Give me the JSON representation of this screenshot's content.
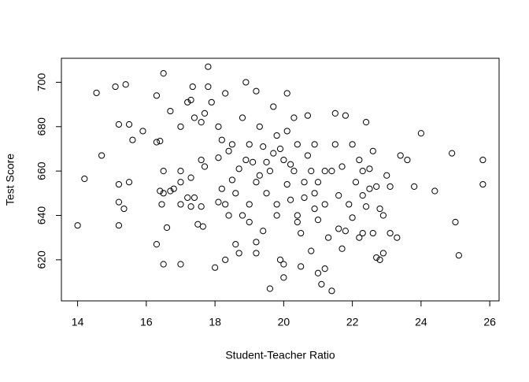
{
  "chart_data": {
    "type": "scatter",
    "x_label": "Student-Teacher Ratio",
    "y_label": "Test Score",
    "color": "#000000",
    "xlim": [
      13.528,
      26.272
    ],
    "ylim": [
      601.5,
      710.8
    ],
    "xticks": [
      14,
      16,
      18,
      20,
      22,
      24,
      26
    ],
    "yticks": [
      620,
      640,
      660,
      680,
      700
    ],
    "x": [
      14.0,
      14.2,
      14.55,
      14.7,
      15.1,
      15.4,
      15.2,
      15.5,
      15.2,
      15.2,
      15.35,
      15.5,
      15.6,
      15.2,
      15.9,
      16.3,
      16.3,
      16.4,
      16.5,
      16.3,
      16.4,
      16.5,
      16.5,
      16.45,
      16.5,
      16.7,
      16.6,
      16.8,
      16.7,
      17.0,
      17.0,
      17.0,
      17.0,
      17.0,
      17.2,
      17.3,
      17.35,
      17.4,
      17.3,
      17.4,
      17.3,
      17.2,
      17.6,
      17.7,
      17.8,
      17.8,
      17.9,
      17.6,
      17.7,
      17.5,
      17.65,
      17.6,
      18.0,
      18.1,
      18.1,
      18.3,
      18.3,
      18.1,
      18.2,
      18.4,
      18.2,
      18.5,
      18.4,
      18.6,
      18.7,
      18.8,
      18.9,
      18.7,
      18.8,
      19.0,
      19.1,
      19.2,
      19.2,
      19.3,
      19.2,
      19.2,
      19.4,
      19.5,
      19.5,
      19.6,
      19.7,
      19.7,
      19.8,
      19.8,
      19.9,
      20.0,
      20.0,
      20.1,
      20.1,
      20.0,
      20.1,
      20.2,
      20.3,
      20.4,
      20.3,
      20.4,
      20.5,
      20.5,
      20.6,
      20.7,
      20.7,
      20.8,
      20.9,
      20.9,
      21.0,
      21.0,
      21.1,
      21.2,
      21.2,
      21.3,
      21.4,
      21.4,
      21.5,
      21.5,
      21.6,
      21.6,
      21.7,
      21.7,
      21.8,
      21.8,
      21.9,
      22.0,
      22.0,
      22.2,
      22.1,
      22.2,
      22.3,
      22.3,
      22.3,
      22.4,
      22.4,
      22.5,
      22.5,
      22.6,
      22.7,
      22.6,
      22.7,
      22.8,
      22.8,
      22.9,
      22.9,
      23.0,
      23.1,
      23.1,
      23.3,
      23.4,
      23.6,
      23.8,
      24.0,
      24.4,
      24.9,
      25.0,
      25.1,
      25.8,
      25.8,
      18.9,
      19.0,
      19.3,
      19.6,
      19.9,
      20.2,
      20.6,
      20.8,
      21.0,
      20.4,
      19.4,
      18.6,
      18.3,
      19.8,
      20.9,
      21.2,
      19.0,
      18.5
    ],
    "values": [
      635.5,
      656.5,
      695.2,
      667,
      698,
      699,
      681,
      681,
      654,
      646,
      643,
      655,
      674,
      635.5,
      678,
      694,
      673,
      673.5,
      704,
      627,
      651,
      650,
      660,
      645,
      618,
      651,
      634.5,
      652,
      687,
      680,
      660,
      655,
      645,
      618,
      691,
      692,
      698,
      684,
      657,
      648,
      644,
      648,
      682,
      686,
      698,
      707,
      691,
      665,
      662,
      636,
      635,
      644,
      616.5,
      666,
      646,
      695,
      620,
      680,
      674,
      669,
      652,
      656,
      640,
      627,
      623,
      684,
      700,
      661,
      640,
      672,
      664,
      696,
      655,
      680,
      628,
      623,
      671,
      664,
      650,
      607,
      689,
      668,
      645,
      640,
      620,
      612,
      618,
      695,
      678,
      665,
      654,
      647,
      684,
      672,
      660,
      640,
      632,
      617,
      655,
      685,
      667,
      624,
      672,
      650,
      638,
      614,
      609,
      616,
      660,
      630,
      660,
      606,
      686,
      672,
      649,
      634,
      625,
      662,
      685,
      633,
      645,
      672,
      639,
      630,
      655,
      665,
      660,
      649,
      632,
      682,
      644,
      652,
      661,
      669,
      653,
      632,
      621,
      620,
      643,
      640,
      623,
      658,
      653,
      632,
      630,
      667,
      665,
      653,
      677,
      651,
      668,
      637,
      622,
      665,
      654,
      665,
      645,
      658,
      660,
      670,
      663,
      648,
      660,
      655,
      637,
      633,
      650,
      645,
      676,
      643,
      645,
      637,
      672
    ]
  }
}
